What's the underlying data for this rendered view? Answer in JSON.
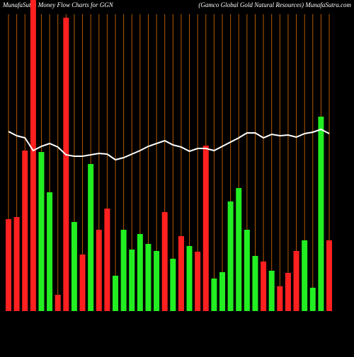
{
  "chart_data": {
    "type": "bar",
    "title": "MunafaSutra  Money Flow  Charts for GGN",
    "subtitle": "(Gamco  Global Gold Natural Resources) MunafaSutra.com",
    "categories": [
      null,
      null,
      null,
      null,
      null,
      null,
      null,
      null,
      null,
      null,
      null,
      null,
      null,
      null,
      null,
      null,
      null,
      null,
      null,
      null,
      null,
      null,
      null,
      null,
      null,
      null,
      null,
      null,
      null,
      null,
      null,
      null,
      null,
      null,
      null,
      null,
      null,
      null,
      null,
      null
    ],
    "ylim": [
      0,
      440
    ],
    "grid_color": "#b35900",
    "series": [
      {
        "values": [
          130,
          133,
          227,
          440,
          225,
          168,
          23,
          415,
          126,
          80,
          208,
          115,
          145,
          50,
          115,
          87,
          109,
          95,
          85,
          140,
          74,
          106,
          92,
          84,
          234,
          46,
          55,
          155,
          174,
          115,
          78,
          70,
          57,
          35,
          54,
          85,
          100,
          33,
          275,
          100
        ],
        "colors": [
          "#ff2020",
          "#ff2020",
          "#ff2020",
          "#ff2020",
          "#22ee22",
          "#22ee22",
          "#ff2020",
          "#ff2020",
          "#22ee22",
          "#ff2020",
          "#22ee22",
          "#ff2020",
          "#ff2020",
          "#22ee22",
          "#22ee22",
          "#22ee22",
          "#22ee22",
          "#22ee22",
          "#22ee22",
          "#ff2020",
          "#22ee22",
          "#ff2020",
          "#22ee22",
          "#ff2020",
          "#ff2020",
          "#22ee22",
          "#22ee22",
          "#22ee22",
          "#22ee22",
          "#22ee22",
          "#22ee22",
          "#ff2020",
          "#22ee22",
          "#ff2020",
          "#ff2020",
          "#ff2020",
          "#22ee22",
          "#22ee22",
          "#22ee22",
          "#ff2020"
        ]
      },
      {
        "type": "line",
        "color": "#ffffff",
        "values": [
          254,
          248,
          245,
          227,
          233,
          237,
          232,
          221,
          219,
          219,
          221,
          223,
          222,
          214,
          217,
          222,
          227,
          233,
          237,
          241,
          235,
          232,
          226,
          230,
          230,
          227,
          233,
          239,
          245,
          252,
          252,
          245,
          250,
          248,
          249,
          246,
          251,
          253,
          257,
          251
        ]
      }
    ]
  }
}
